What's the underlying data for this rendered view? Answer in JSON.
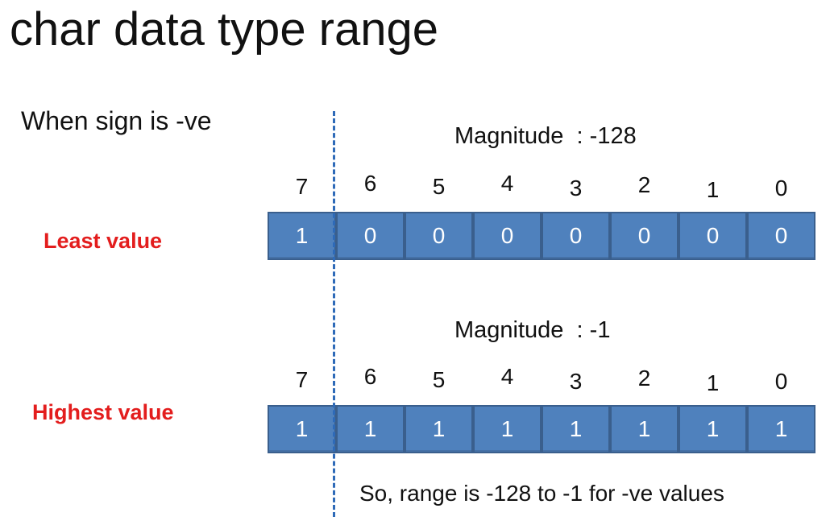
{
  "title": "char data type range",
  "subtitle": "When sign is -ve",
  "rows": [
    {
      "label": "Least value",
      "magnitude": "Magnitude  : -128",
      "bit_indices": [
        "7",
        "6",
        "5",
        "4",
        "3",
        "2",
        "1",
        "0"
      ],
      "bits": [
        "1",
        "0",
        "0",
        "0",
        "0",
        "0",
        "0",
        "0"
      ]
    },
    {
      "label": "Highest value",
      "magnitude": "Magnitude  : -1",
      "bit_indices": [
        "7",
        "6",
        "5",
        "4",
        "3",
        "2",
        "1",
        "0"
      ],
      "bits": [
        "1",
        "1",
        "1",
        "1",
        "1",
        "1",
        "1",
        "1"
      ]
    }
  ],
  "note": "So, range is -128 to -1 for -ve values",
  "colors": {
    "cell_fill": "#4f81bd",
    "cell_border": "#3a5f8d",
    "label_red": "#e31d1d",
    "divider_blue": "#2e6ab8"
  }
}
